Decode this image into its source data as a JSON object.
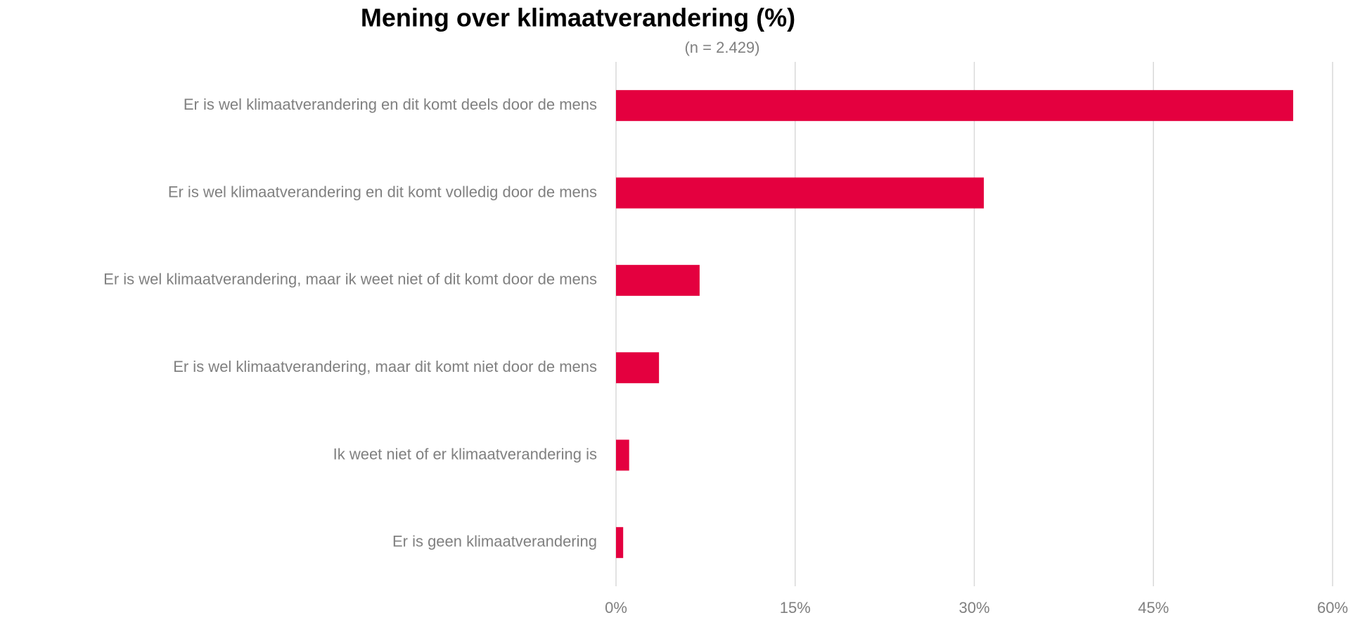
{
  "chart_data": {
    "type": "hbar",
    "title": "Mening over klimaatverandering (%)",
    "subtitle": "(n  = 2.429)",
    "categories": [
      "Er is wel klimaatverandering en dit komt deels door de mens",
      "Er is wel klimaatverandering en dit komt volledig door de mens",
      "Er is wel klimaatverandering, maar ik weet niet of dit komt door de mens",
      "Er is wel klimaatverandering, maar dit komt niet door de mens",
      "Ik weet niet of er klimaatverandering is",
      "Er is geen klimaatverandering"
    ],
    "values": [
      56.7,
      30.8,
      7.0,
      3.6,
      1.1,
      0.6
    ],
    "color": "#e4003f",
    "xlim": [
      0,
      60
    ],
    "xticks": [
      {
        "value": 0,
        "label": "0%"
      },
      {
        "value": 15,
        "label": "15%"
      },
      {
        "value": 30,
        "label": "30%"
      },
      {
        "value": 45,
        "label": "45%"
      },
      {
        "value": 60,
        "label": "60%"
      }
    ],
    "grid": true
  }
}
